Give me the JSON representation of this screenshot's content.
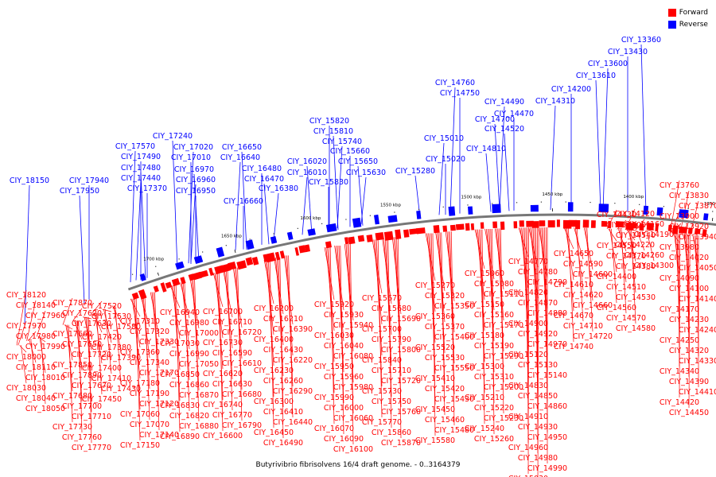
{
  "legend": {
    "forward_label": "Forward",
    "reverse_label": "Reverse",
    "forward_color": "#ff0000",
    "reverse_color": "#0000ff"
  },
  "caption": "Butyrivibrio fibrisolvens 16/4 draft genome. - 0..3164379",
  "colors": {
    "forward": "#ff0000",
    "reverse": "#0000ff",
    "backbone": "#777777"
  },
  "ticks": [
    "1700 kbp",
    "1650 kbp",
    "1600 kbp",
    "1550 kbp",
    "1500 kbp",
    "1450 kbp",
    "1400 kbp",
    "1350 kbp",
    "1300 kbp",
    "1250 kbp"
  ],
  "reverse_labels": [
    "CIY_18150",
    "CIY_17940",
    "CIY_17950",
    "CIY_17570",
    "CIY_17490",
    "CIY_17480",
    "CIY_17440",
    "CIY_17370",
    "CIY_17240",
    "CIY_17020",
    "CIY_17010",
    "CIY_16970",
    "CIY_16960",
    "CIY_16950",
    "CIY_16650",
    "CIY_16640",
    "CIY_16480",
    "CIY_16470",
    "CIY_16380",
    "CIY_16660",
    "CIY_16020",
    "CIY_16010",
    "CIY_15820",
    "CIY_15810",
    "CIY_15740",
    "CIY_15660",
    "CIY_15650",
    "CIY_15630",
    "CIY_15830",
    "CIY_15280",
    "CIY_15010",
    "CIY_15020",
    "CIY_14810",
    "CIY_14760",
    "CIY_14750",
    "CIY_14700",
    "CIY_14490",
    "CIY_14470",
    "CIY_14520",
    "CIY_14310",
    "CIY_14200",
    "CIY_13610",
    "CIY_13600",
    "CIY_13430",
    "CIY_13360"
  ],
  "forward_labels": [
    [
      "CIY_18120",
      "CIY_18140",
      "CIY_17960",
      "CIY_17970",
      "CIY_17980",
      "CIY_17990",
      "CIY_18000",
      "CIY_18110",
      "CIY_18010",
      "CIY_18030",
      "CIY_18040",
      "CIY_18050"
    ],
    [
      "CIY_17870",
      "CIY_17620",
      "CIY_17630",
      "CIY_17660",
      "CIY_17650",
      "CIY_17720",
      "CIY_17850",
      "CIY_17890",
      "CIY_17670",
      "CIY_17680",
      "CIY_17700",
      "CIY_17710",
      "CIY_17730",
      "CIY_17760",
      "CIY_17770"
    ],
    [
      "CIY_17520",
      "CIY_17530",
      "CIY_17580",
      "CIY_17420",
      "CIY_17380",
      "CIY_17390",
      "CIY_17400",
      "CIY_17410",
      "CIY_17430",
      "CIY_17450"
    ],
    [
      "CIY_17310",
      "CIY_17320",
      "CIY_17330",
      "CIY_17360",
      "CIY_17340",
      "CIY_17170",
      "CIY_17180",
      "CIY_17190",
      "CIY_17120",
      "CIY_17060",
      "CIY_17070",
      "CIY_17140",
      "CIY_17150"
    ],
    [
      "CIY_16940",
      "CIY_16980",
      "CIY_17000",
      "CIY_17030",
      "CIY_16990",
      "CIY_17050",
      "CIY_16850",
      "CIY_16860",
      "CIY_16870",
      "CIY_16830",
      "CIY_16820",
      "CIY_16880",
      "CIY_16890"
    ],
    [
      "CIY_16700",
      "CIY_16710",
      "CIY_16720",
      "CIY_16730",
      "CIY_16590",
      "CIY_16610",
      "CIY_16620",
      "CIY_16630",
      "CIY_16680",
      "CIY_16740",
      "CIY_16770",
      "CIY_16790",
      "CIY_16600"
    ],
    [
      "CIY_16200",
      "CIY_16210",
      "CIY_16390",
      "CIY_16400",
      "CIY_16430",
      "CIY_16220",
      "CIY_16230",
      "CIY_16260",
      "CIY_16290",
      "CIY_16300",
      "CIY_16410",
      "CIY_16440",
      "CIY_16450",
      "CIY_16490"
    ],
    [
      "CIY_15920",
      "CIY_15930",
      "CIY_15940",
      "CIY_16030",
      "CIY_16040",
      "CIY_16080",
      "CIY_15950",
      "CIY_15960",
      "CIY_15980",
      "CIY_15990",
      "CIY_16000",
      "CIY_16060",
      "CIY_16070",
      "CIY_16090",
      "CIY_16100"
    ],
    [
      "CIY_15670",
      "CIY_15680",
      "CIY_15690",
      "CIY_15700",
      "CIY_15790",
      "CIY_15800",
      "CIY_15840",
      "CIY_15710",
      "CIY_15720",
      "CIY_15730",
      "CIY_15750",
      "CIY_15760",
      "CIY_15770",
      "CIY_15860",
      "CIY_15870"
    ],
    [
      "CIY_15270",
      "CIY_15320",
      "CIY_15350",
      "CIY_15360",
      "CIY_15370",
      "CIY_15400",
      "CIY_15520",
      "CIY_15530",
      "CIY_15550",
      "CIY_15410",
      "CIY_15420",
      "CIY_15430",
      "CIY_15450",
      "CIY_15460",
      "CIY_15480",
      "CIY_15580"
    ],
    [
      "CIY_15060",
      "CIY_15080",
      "CIY_15110",
      "CIY_15150",
      "CIY_15160",
      "CIY_15170",
      "CIY_15180",
      "CIY_15190",
      "CIY_15290",
      "CIY_15300",
      "CIY_15310",
      "CIY_15200",
      "CIY_15210",
      "CIY_15220",
      "CIY_15230",
      "CIY_15240",
      "CIY_15260"
    ],
    [
      "CIY_14770",
      "CIY_14780",
      "CIY_14790",
      "CIY_14820",
      "CIY_14870",
      "CIY_14880",
      "CIY_14900",
      "CIY_14920",
      "CIY_14970",
      "CIY_15120",
      "CIY_15130",
      "CIY_15140",
      "CIY_14830",
      "CIY_14850",
      "CIY_14860",
      "CIY_14910",
      "CIY_14930",
      "CIY_14950",
      "CIY_14960",
      "CIY_14980",
      "CIY_14990",
      "CIY_15030",
      "CIY_15040"
    ],
    [
      "CIY_14650",
      "CIY_14590",
      "CIY_14600",
      "CIY_14610",
      "CIY_14620",
      "CIY_14660",
      "CIY_14670",
      "CIY_14710",
      "CIY_14720",
      "CIY_14740"
    ],
    [
      "CIY_14430",
      "CIY_14500",
      "CIY_14540",
      "CIY_14550",
      "CIY_14370",
      "CIY_14380",
      "CIY_14400",
      "CIY_14510",
      "CIY_14530",
      "CIY_14560",
      "CIY_14570",
      "CIY_14580"
    ],
    [
      "CIY_14120",
      "CIY_14160",
      "CIY_14190",
      "CIY_14220",
      "CIY_14260",
      "CIY_14300"
    ],
    [
      "CIY_13760",
      "CIY_13830",
      "CIY_13870",
      "CIY_13900",
      "CIY_13920",
      "CIY_13940",
      "CIY_13980",
      "CIY_14020",
      "CIY_14050",
      "CIY_14090",
      "CIY_14100",
      "CIY_14140",
      "CIY_14170",
      "CIY_14230",
      "CIY_14240",
      "CIY_14250",
      "CIY_14320",
      "CIY_14330",
      "CIY_14340",
      "CIY_14390",
      "CIY_14410",
      "CIY_14420",
      "CIY_14450"
    ]
  ]
}
